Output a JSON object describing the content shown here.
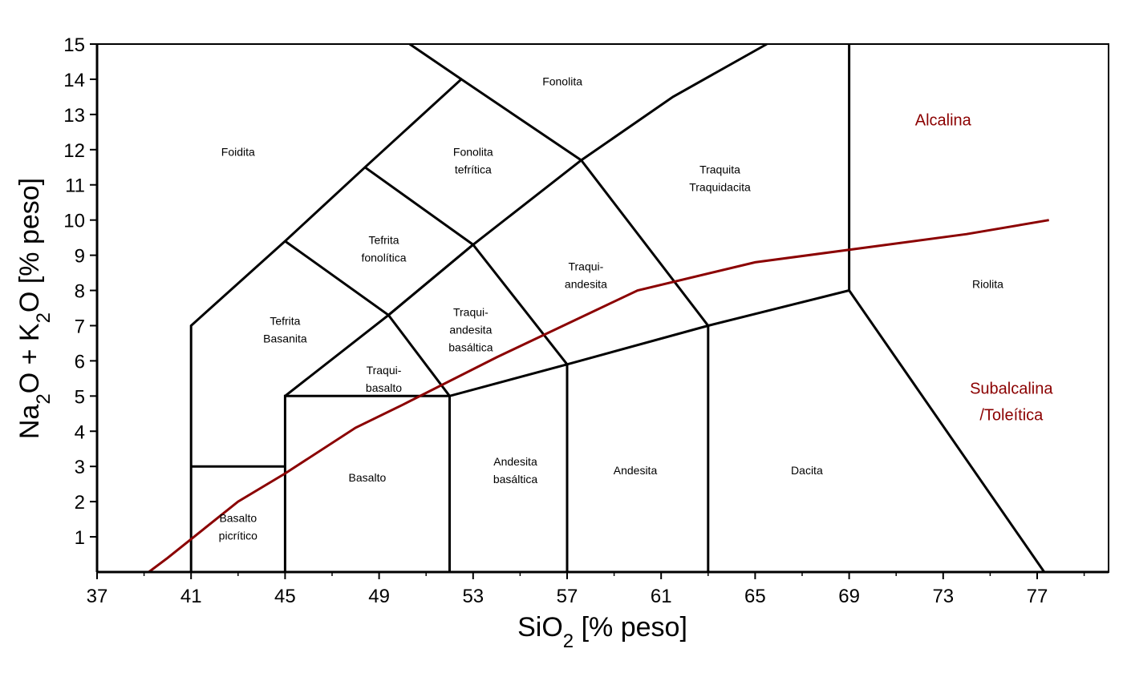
{
  "chart_data": {
    "type": "line",
    "x_axis": {
      "label_parts": [
        "SiO",
        "2",
        " [% peso]"
      ],
      "ticks": [
        37,
        41,
        45,
        49,
        53,
        57,
        61,
        65,
        69,
        73,
        77
      ],
      "range": [
        37,
        80
      ]
    },
    "y_axis": {
      "label_parts": [
        "Na",
        "2",
        "O + K",
        "2",
        "O [% peso]"
      ],
      "ticks": [
        1,
        2,
        3,
        4,
        5,
        6,
        7,
        8,
        9,
        10,
        11,
        12,
        13,
        14,
        15
      ],
      "range": [
        0,
        15
      ]
    },
    "grid": false,
    "colors": {
      "boundary": "#000000",
      "divider": "#8b0000"
    },
    "fields": [
      {
        "lines": [
          "Fonolita"
        ],
        "x": 56.8,
        "y": 14.0
      },
      {
        "lines": [
          "Foidita"
        ],
        "x": 43.0,
        "y": 12.0
      },
      {
        "lines": [
          "Fonolita",
          "tefrítica"
        ],
        "x": 53.0,
        "y": 11.75
      },
      {
        "lines": [
          "Traquita",
          "Traquidacita"
        ],
        "x": 63.5,
        "y": 11.25
      },
      {
        "lines": [
          "Tefrita",
          "fonolítica"
        ],
        "x": 49.2,
        "y": 9.25
      },
      {
        "lines": [
          "Traqui-",
          "andesita"
        ],
        "x": 57.8,
        "y": 8.5
      },
      {
        "lines": [
          "Riolita"
        ],
        "x": 74.9,
        "y": 8.25
      },
      {
        "lines": [
          "Tefrita",
          "Basanita"
        ],
        "x": 45.0,
        "y": 6.95
      },
      {
        "lines": [
          "Traqui-",
          "andesita",
          "basáltica"
        ],
        "x": 52.9,
        "y": 6.95
      },
      {
        "lines": [
          "Traqui-",
          "basalto"
        ],
        "x": 49.2,
        "y": 5.55
      },
      {
        "lines": [
          "Andesita",
          "basáltica"
        ],
        "x": 54.8,
        "y": 2.95
      },
      {
        "lines": [
          "Andesita"
        ],
        "x": 59.9,
        "y": 2.95
      },
      {
        "lines": [
          "Dacita"
        ],
        "x": 67.2,
        "y": 2.95
      },
      {
        "lines": [
          "Basalto"
        ],
        "x": 48.5,
        "y": 2.75
      },
      {
        "lines": [
          "Basalto",
          "picrítico"
        ],
        "x": 43.0,
        "y": 1.35
      }
    ],
    "series_labels": [
      {
        "lines": [
          "Alcalina"
        ],
        "x": 73.0,
        "y": 12.95
      },
      {
        "lines": [
          "Subalcalina",
          "/Toleítica"
        ],
        "x": 75.9,
        "y": 4.95
      }
    ],
    "boundaries": [
      [
        [
          41,
          0
        ],
        [
          41,
          7
        ],
        [
          45,
          9.4
        ],
        [
          48.4,
          11.5
        ],
        [
          52.5,
          14
        ],
        [
          57.6,
          11.7
        ],
        [
          63,
          7
        ],
        [
          69,
          8
        ],
        [
          77.3,
          0
        ]
      ],
      [
        [
          41,
          3
        ],
        [
          45,
          3
        ]
      ],
      [
        [
          45,
          0
        ],
        [
          45,
          5
        ],
        [
          52,
          5
        ],
        [
          57,
          5.9
        ],
        [
          63,
          7
        ]
      ],
      [
        [
          52,
          0
        ],
        [
          52,
          5
        ]
      ],
      [
        [
          57,
          0
        ],
        [
          57,
          5.9
        ]
      ],
      [
        [
          63,
          0
        ],
        [
          63,
          7
        ]
      ],
      [
        [
          52,
          5
        ],
        [
          49.4,
          7.3
        ],
        [
          45,
          9.4
        ]
      ],
      [
        [
          49.4,
          7.3
        ],
        [
          53,
          9.3
        ],
        [
          48.4,
          11.5
        ]
      ],
      [
        [
          53,
          9.3
        ],
        [
          57,
          5.9
        ]
      ],
      [
        [
          52.5,
          14
        ],
        [
          50.3,
          15
        ]
      ],
      [
        [
          69,
          8
        ],
        [
          69,
          15
        ]
      ],
      [
        [
          45,
          5
        ],
        [
          49.4,
          7.3
        ],
        [
          53,
          9.3
        ],
        [
          57.6,
          11.7
        ],
        [
          61.5,
          13.5
        ],
        [
          65.5,
          15
        ]
      ]
    ],
    "divider_curve": {
      "x": [
        39.2,
        40,
        43,
        45,
        48,
        50,
        54,
        60,
        65,
        74,
        77.5
      ],
      "y": [
        0,
        0.4,
        2.0,
        2.8,
        4.1,
        4.75,
        6.1,
        8.0,
        8.8,
        9.6,
        10.0
      ]
    }
  }
}
